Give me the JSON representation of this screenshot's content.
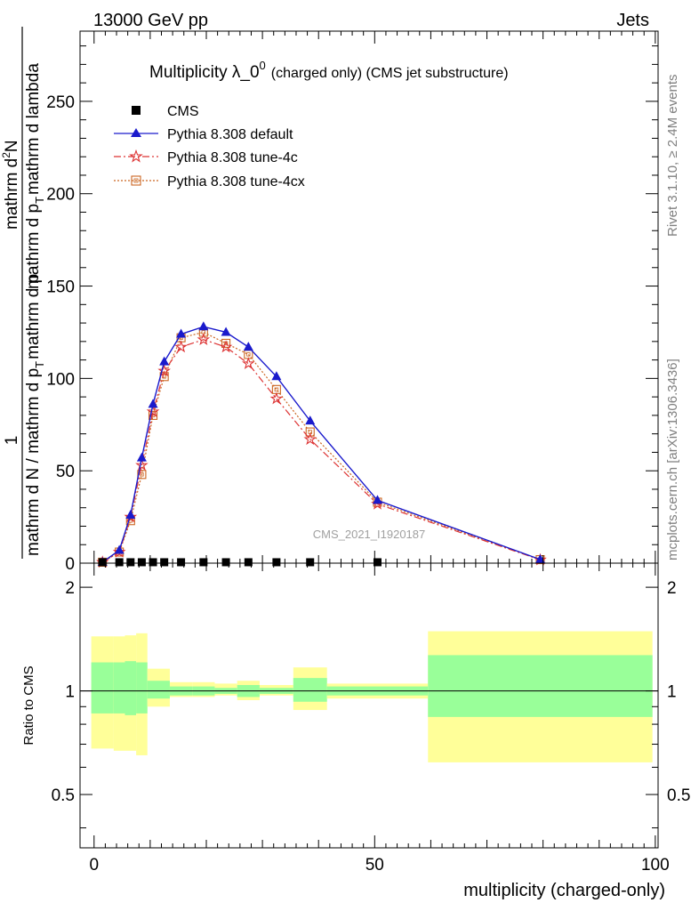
{
  "header": {
    "left": "13000 GeV pp",
    "right": "Jets"
  },
  "side_labels": {
    "rivet": "Rivet 3.1.10, ≥ 2.4M events",
    "mcplots": "mcplots.cern.ch [arXiv:1306.3436]"
  },
  "chart_data": [
    {
      "type": "line",
      "title": "Multiplicity λ_0⁰ (charged only) (CMS jet substructure)",
      "title_main": "Multiplicity λ_0",
      "title_sup": "0",
      "title_sub": "(charged only) (CMS jet substructure)",
      "ylabel_top": "1",
      "ylabel_bottom": "mathrm d N / mathrm d p",
      "ylabel_bottom_sub": "T",
      "ylabel_bottom_rest": "mathrm d p",
      "ylabel_num": "mathrm d",
      "ylabel_num_sup": "2",
      "ylabel_num_rest": "N",
      "ylabel_den": "mathrm d p",
      "ylabel_den_sub": "T",
      "ylabel_den_rest": "mathrm d lambda",
      "xlim": [
        -2.5,
        100.5
      ],
      "ylim": [
        0,
        288
      ],
      "y_ticks": [
        0,
        50,
        100,
        150,
        200,
        250
      ],
      "x_ticks": [
        0,
        50,
        100
      ],
      "watermark": "CMS_2021_I1920187",
      "legend_placement": "top-left",
      "series": [
        {
          "name": "CMS",
          "style": "marker",
          "color": "#000000",
          "x": [
            1.5,
            4.5,
            6.5,
            8.5,
            10.5,
            12.5,
            15.5,
            19.5,
            23.5,
            27.5,
            32.5,
            38.5,
            50.5
          ],
          "y": [
            0.5,
            0.5,
            0.5,
            0.5,
            0.5,
            0.5,
            0.5,
            0.5,
            0.5,
            0.5,
            0.5,
            0.5,
            0.5
          ]
        },
        {
          "name": "Pythia 8.308 default",
          "style": "solid-triangle",
          "color": "#1a1acc",
          "x": [
            1.5,
            4.5,
            6.5,
            8.5,
            10.5,
            12.5,
            15.5,
            19.5,
            23.5,
            27.5,
            32.5,
            38.5,
            50.5,
            79.5
          ],
          "y": [
            0.5,
            7,
            26,
            57,
            86,
            109,
            124,
            128,
            125,
            117,
            101,
            77,
            34,
            2
          ]
        },
        {
          "name": "Pythia 8.308 tune-4c",
          "style": "dashdot-star",
          "color": "#dd3333",
          "x": [
            1.5,
            4.5,
            6.5,
            8.5,
            10.5,
            12.5,
            15.5,
            19.5,
            23.5,
            27.5,
            32.5,
            38.5,
            50.5,
            79.5
          ],
          "y": [
            0.5,
            6,
            25,
            53,
            82,
            104,
            117,
            121,
            117,
            108,
            89,
            67,
            32,
            1.8
          ]
        },
        {
          "name": "Pythia 8.308 tune-4cx",
          "style": "dotted-square",
          "color": "#cc6622",
          "x": [
            1.5,
            4.5,
            6.5,
            8.5,
            10.5,
            12.5,
            15.5,
            19.5,
            23.5,
            27.5,
            32.5,
            38.5,
            50.5,
            79.5
          ],
          "y": [
            0.5,
            6,
            23,
            48,
            80,
            101,
            122,
            125,
            119,
            113,
            94,
            71,
            33,
            1.9
          ]
        }
      ]
    },
    {
      "type": "area",
      "ylabel": "Ratio to CMS",
      "xlabel": "multiplicity (charged-only)",
      "xlim": [
        -2.5,
        100.5
      ],
      "ylim": [
        0.35,
        2.35
      ],
      "y_ticks": [
        0.5,
        1,
        2
      ],
      "x_ticks": [
        0,
        50,
        100
      ],
      "reference_line": 1,
      "bins": [
        {
          "x_low": -0.5,
          "x_high": 3.5,
          "stat_low": 0.86,
          "stat_high": 1.21,
          "total_low": 0.68,
          "total_high": 1.44
        },
        {
          "x_low": 3.5,
          "x_high": 5.5,
          "stat_low": 0.86,
          "stat_high": 1.21,
          "total_low": 0.67,
          "total_high": 1.44
        },
        {
          "x_low": 5.5,
          "x_high": 7.5,
          "stat_low": 0.85,
          "stat_high": 1.22,
          "total_low": 0.67,
          "total_high": 1.45
        },
        {
          "x_low": 7.5,
          "x_high": 9.5,
          "stat_low": 0.86,
          "stat_high": 1.21,
          "total_low": 0.65,
          "total_high": 1.47
        },
        {
          "x_low": 9.5,
          "x_high": 13.5,
          "stat_low": 0.95,
          "stat_high": 1.07,
          "total_low": 0.9,
          "total_high": 1.16
        },
        {
          "x_low": 13.5,
          "x_high": 17.5,
          "stat_low": 0.97,
          "stat_high": 1.03,
          "total_low": 0.96,
          "total_high": 1.06
        },
        {
          "x_low": 17.5,
          "x_high": 21.5,
          "stat_low": 0.97,
          "stat_high": 1.03,
          "total_low": 0.96,
          "total_high": 1.06
        },
        {
          "x_low": 21.5,
          "x_high": 25.5,
          "stat_low": 0.98,
          "stat_high": 1.02,
          "total_low": 0.97,
          "total_high": 1.05
        },
        {
          "x_low": 25.5,
          "x_high": 29.5,
          "stat_low": 0.96,
          "stat_high": 1.04,
          "total_low": 0.94,
          "total_high": 1.07
        },
        {
          "x_low": 29.5,
          "x_high": 35.5,
          "stat_low": 0.98,
          "stat_high": 1.02,
          "total_low": 0.97,
          "total_high": 1.04
        },
        {
          "x_low": 35.5,
          "x_high": 41.5,
          "stat_low": 0.93,
          "stat_high": 1.09,
          "total_low": 0.88,
          "total_high": 1.17
        },
        {
          "x_low": 41.5,
          "x_high": 59.5,
          "stat_low": 0.97,
          "stat_high": 1.03,
          "total_low": 0.95,
          "total_high": 1.05
        },
        {
          "x_low": 59.5,
          "x_high": 99.5,
          "stat_low": 0.84,
          "stat_high": 1.27,
          "total_low": 0.62,
          "total_high": 1.49
        }
      ]
    }
  ]
}
